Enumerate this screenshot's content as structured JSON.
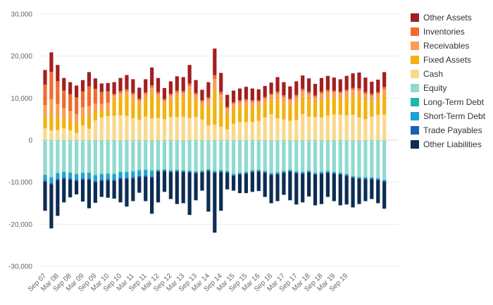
{
  "chart_data": {
    "type": "bar",
    "stacked": true,
    "title": "",
    "xlabel": "",
    "ylabel": "",
    "ylim": [
      -30000,
      30000
    ],
    "yticks": [
      30000,
      20000,
      10000,
      0,
      -10000,
      -20000,
      -30000
    ],
    "ytick_labels": [
      "30,000",
      "20,000",
      "10,000",
      "0",
      "-10,000",
      "-20,000",
      "-30,000"
    ],
    "xtick_labels": [
      "Sep 07",
      "Mar 08",
      "Sep 08",
      "Mar 09",
      "Sep 09",
      "Mar 10",
      "Sep 10",
      "Mar 11",
      "Sep 11",
      "Mar 12",
      "Sep 12",
      "Mar 13",
      "Sep 13",
      "Mar 14",
      "Sep 14",
      "Mar 15",
      "Sep 15",
      "Mar 16",
      "Sep 16",
      "Mar 17",
      "Sep 17",
      "Mar 18",
      "Sep 18",
      "Mar 19",
      "Sep 19"
    ],
    "grid": true,
    "legend_position": "right",
    "series_order": [
      "Other Assets",
      "Inventories",
      "Receivables",
      "Fixed Assets",
      "Cash",
      "Equity",
      "Long-Term Debt",
      "Short-Term Debt",
      "Trade Payables",
      "Other Liabilities"
    ],
    "colors": {
      "Other Assets": "#a31f21",
      "Inventories": "#f26a2e",
      "Receivables": "#f7a052",
      "Fixed Assets": "#f2b20f",
      "Cash": "#fad98c",
      "Equity": "#8fdad0",
      "Long-Term Debt": "#22b5a8",
      "Short-Term Debt": "#1aa3d6",
      "Trade Payables": "#1a5fb4",
      "Other Liabilities": "#0c2d53"
    },
    "assets_top": [
      16700,
      20900,
      17900,
      14800,
      13800,
      13000,
      14300,
      16200,
      14700,
      13500,
      13600,
      13800,
      14800,
      15500,
      14500,
      12500,
      14500,
      17300,
      14800,
      12400,
      14000,
      15200,
      15000,
      17900,
      14300,
      12000,
      13800,
      21800,
      16000,
      10800,
      11800,
      12300,
      12700,
      12300,
      12100,
      12900,
      13700,
      15000,
      13800,
      12800,
      14000,
      15400,
      14700,
      13400,
      14800,
      15300,
      14900,
      14500,
      15300,
      15900,
      16100,
      14900,
      13900,
      14400,
      16200
    ],
    "assets_bottom": [
      2800,
      2300,
      2400,
      2800,
      2300,
      1700,
      3500,
      2700,
      4700,
      5400,
      5700,
      5800,
      5900,
      5800,
      5200,
      4900,
      5600,
      5200,
      5300,
      5000,
      5500,
      5500,
      5600,
      5300,
      5500,
      4900,
      3500,
      3700,
      3200,
      2600,
      3900,
      4300,
      4300,
      4300,
      4600,
      5400,
      6200,
      5200,
      4900,
      4600,
      4800,
      6200,
      5600,
      5500,
      5400,
      5800,
      6100,
      6100,
      5900,
      6000,
      5400,
      5000,
      5600,
      6000,
      6100
    ],
    "liabilities_bottom": [
      -16800,
      -21000,
      -18000,
      -14800,
      -13600,
      -12900,
      -14600,
      -16200,
      -14900,
      -13500,
      -13700,
      -13900,
      -14800,
      -15800,
      -14500,
      -12500,
      -14500,
      -17500,
      -14800,
      -12300,
      -14000,
      -15200,
      -15000,
      -17800,
      -14300,
      -12000,
      -17000,
      -22000,
      -16800,
      -11700,
      -12000,
      -12600,
      -12600,
      -12300,
      -12100,
      -13500,
      -15000,
      -14500,
      -13000,
      -14300,
      -15300,
      -14800,
      -13400,
      -15500,
      -15200,
      -13500,
      -14500,
      -15500,
      -15300,
      -16000,
      -15200,
      -14500,
      -14000,
      -15000,
      -16300
    ],
    "equity_bottom": [
      -8200,
      -8800,
      -7800,
      -7500,
      -7700,
      -8000,
      -7700,
      -7700,
      -8300,
      -8000,
      -7900,
      -8000,
      -7500,
      -7500,
      -7400,
      -7100,
      -7000,
      -7200,
      -7000,
      -6900,
      -7100,
      -7000,
      -7100,
      -7200,
      -7400,
      -7200,
      -6900,
      -7300,
      -7100,
      -7300,
      -8000,
      -7700,
      -7500,
      -7100,
      -7000,
      -7300,
      -7800,
      -7600,
      -7300,
      -7000,
      -7400,
      -7500,
      -7200,
      -7700,
      -7500,
      -7300,
      -7500,
      -7700,
      -8000,
      -8500,
      -8700,
      -8800,
      -8800,
      -9000,
      -9400
    ]
  },
  "legend": [
    {
      "label": "Other Assets",
      "color": "#a31f21"
    },
    {
      "label": "Inventories",
      "color": "#f26a2e"
    },
    {
      "label": "Receivables",
      "color": "#f7a052"
    },
    {
      "label": "Fixed Assets",
      "color": "#f2b20f"
    },
    {
      "label": "Cash",
      "color": "#fad98c"
    },
    {
      "label": "Equity",
      "color": "#8fdad0"
    },
    {
      "label": "Long-Term Debt",
      "color": "#22b5a8"
    },
    {
      "label": "Short-Term Debt",
      "color": "#1aa3d6"
    },
    {
      "label": "Trade Payables",
      "color": "#1a5fb4"
    },
    {
      "label": "Other Liabilities",
      "color": "#0c2d53"
    }
  ]
}
